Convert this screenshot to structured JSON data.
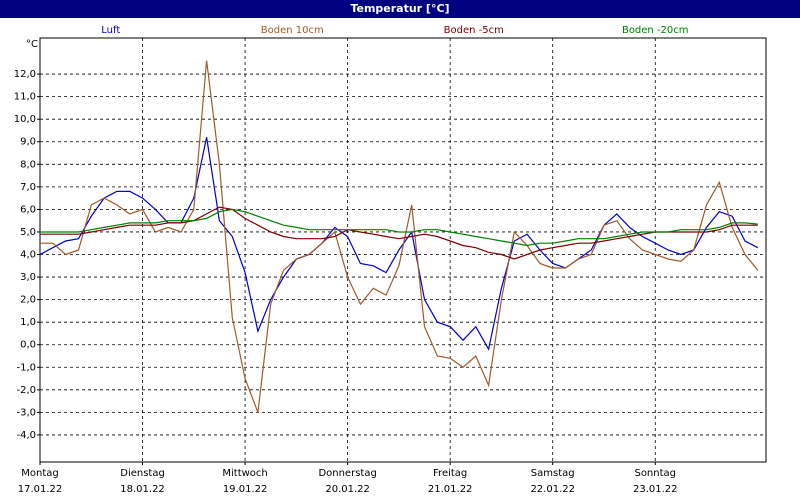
{
  "chart_data": {
    "type": "line",
    "title": "Temperatur [°C]",
    "y_unit": "°C",
    "x": [
      0,
      0.125,
      0.25,
      0.375,
      0.5,
      0.625,
      0.75,
      0.875,
      1,
      1.125,
      1.25,
      1.375,
      1.5,
      1.625,
      1.75,
      1.875,
      2,
      2.125,
      2.25,
      2.375,
      2.5,
      2.625,
      2.75,
      2.875,
      3,
      3.125,
      3.25,
      3.375,
      3.5,
      3.625,
      3.75,
      3.875,
      4,
      4.125,
      4.25,
      4.375,
      4.5,
      4.625,
      4.75,
      4.875,
      5,
      5.125,
      5.25,
      5.375,
      5.5,
      5.625,
      5.75,
      5.875,
      6,
      6.125,
      6.25,
      6.375,
      6.5,
      6.625,
      6.75,
      6.875,
      7
    ],
    "series": [
      {
        "name": "Luft",
        "color": "#0000cc",
        "values": [
          4.0,
          4.3,
          4.6,
          4.7,
          5.7,
          6.5,
          6.8,
          6.8,
          6.5,
          6.0,
          5.4,
          5.4,
          6.5,
          9.2,
          5.5,
          4.8,
          3.2,
          0.6,
          2.0,
          3.0,
          3.8,
          4.0,
          4.5,
          5.2,
          4.8,
          3.6,
          3.5,
          3.2,
          4.2,
          5.0,
          2.0,
          1.0,
          0.8,
          0.2,
          0.8,
          -0.2,
          2.5,
          4.6,
          4.9,
          4.2,
          3.6,
          3.4,
          3.8,
          4.2,
          5.3,
          5.8,
          5.2,
          4.8,
          4.5,
          4.2,
          4.0,
          4.2,
          5.2,
          5.9,
          5.7,
          4.6,
          4.3
        ]
      },
      {
        "name": "Boden 10cm",
        "color": "#a05a2c",
        "values": [
          4.5,
          4.5,
          4.0,
          4.2,
          6.2,
          6.5,
          6.2,
          5.8,
          6.0,
          5.0,
          5.2,
          5.0,
          6.0,
          12.6,
          8.0,
          1.2,
          -1.5,
          -3.0,
          1.8,
          3.3,
          3.8,
          4.0,
          4.5,
          5.0,
          3.0,
          1.8,
          2.5,
          2.2,
          3.5,
          6.2,
          0.8,
          -0.5,
          -0.6,
          -1.0,
          -0.5,
          -1.8,
          2.0,
          5.0,
          4.4,
          3.6,
          3.4,
          3.4,
          3.8,
          4.0,
          5.3,
          5.5,
          4.7,
          4.2,
          4.0,
          3.8,
          3.7,
          4.2,
          6.2,
          7.2,
          5.2,
          4.0,
          3.3
        ]
      },
      {
        "name": "Boden -5cm",
        "color": "#800000",
        "values": [
          4.9,
          4.9,
          4.9,
          4.9,
          5.0,
          5.1,
          5.2,
          5.3,
          5.3,
          5.3,
          5.4,
          5.4,
          5.5,
          5.8,
          6.1,
          6.0,
          5.6,
          5.3,
          5.0,
          4.8,
          4.7,
          4.7,
          4.7,
          4.8,
          5.1,
          5.0,
          4.9,
          4.8,
          4.7,
          4.8,
          4.9,
          4.8,
          4.6,
          4.4,
          4.3,
          4.1,
          4.0,
          3.8,
          4.0,
          4.2,
          4.3,
          4.4,
          4.5,
          4.5,
          4.6,
          4.7,
          4.8,
          4.9,
          5.0,
          5.0,
          5.0,
          5.0,
          5.0,
          5.1,
          5.3,
          5.3,
          5.3
        ]
      },
      {
        "name": "Boden -20cm",
        "color": "#008000",
        "values": [
          5.0,
          5.0,
          5.0,
          5.0,
          5.1,
          5.2,
          5.3,
          5.4,
          5.4,
          5.4,
          5.5,
          5.5,
          5.5,
          5.6,
          5.9,
          6.0,
          5.9,
          5.7,
          5.5,
          5.3,
          5.2,
          5.1,
          5.1,
          5.1,
          5.1,
          5.1,
          5.1,
          5.1,
          5.0,
          5.0,
          5.1,
          5.1,
          5.0,
          4.9,
          4.8,
          4.7,
          4.6,
          4.5,
          4.4,
          4.5,
          4.5,
          4.6,
          4.7,
          4.7,
          4.7,
          4.8,
          4.9,
          5.0,
          5.0,
          5.0,
          5.1,
          5.1,
          5.1,
          5.2,
          5.4,
          5.4,
          5.35
        ]
      }
    ],
    "xlim": [
      0,
      7.08
    ],
    "ylim": [
      -5.2,
      13.6
    ],
    "xticks": [
      {
        "value": 0,
        "label": "Montag"
      },
      {
        "value": 1,
        "label": "Dienstag"
      },
      {
        "value": 2,
        "label": "Mittwoch"
      },
      {
        "value": 3,
        "label": "Donnerstag"
      },
      {
        "value": 4,
        "label": "Freitag"
      },
      {
        "value": 5,
        "label": "Samstag"
      },
      {
        "value": 6,
        "label": "Sonntag"
      }
    ],
    "xtick_dates": [
      "17.01.22",
      "18.01.22",
      "19.01.22",
      "20.01.22",
      "21.01.22",
      "22.01.22",
      "23.01.22"
    ],
    "yticks": [
      {
        "value": -4,
        "label": "-4,0"
      },
      {
        "value": -3,
        "label": "-3,0"
      },
      {
        "value": -2,
        "label": "-2,0"
      },
      {
        "value": -1,
        "label": "-1,0"
      },
      {
        "value": 0,
        "label": "0,0"
      },
      {
        "value": 1,
        "label": "1,0"
      },
      {
        "value": 2,
        "label": "2,0"
      },
      {
        "value": 3,
        "label": "3,0"
      },
      {
        "value": 4,
        "label": "4,0"
      },
      {
        "value": 5,
        "label": "5,0"
      },
      {
        "value": 6,
        "label": "6,0"
      },
      {
        "value": 7,
        "label": "7,0"
      },
      {
        "value": 8,
        "label": "8,0"
      },
      {
        "value": 9,
        "label": "9,0"
      },
      {
        "value": 10,
        "label": "10,0"
      },
      {
        "value": 11,
        "label": "11,0"
      },
      {
        "value": 12,
        "label": "12,0"
      }
    ],
    "grid": true,
    "legend": "top"
  }
}
